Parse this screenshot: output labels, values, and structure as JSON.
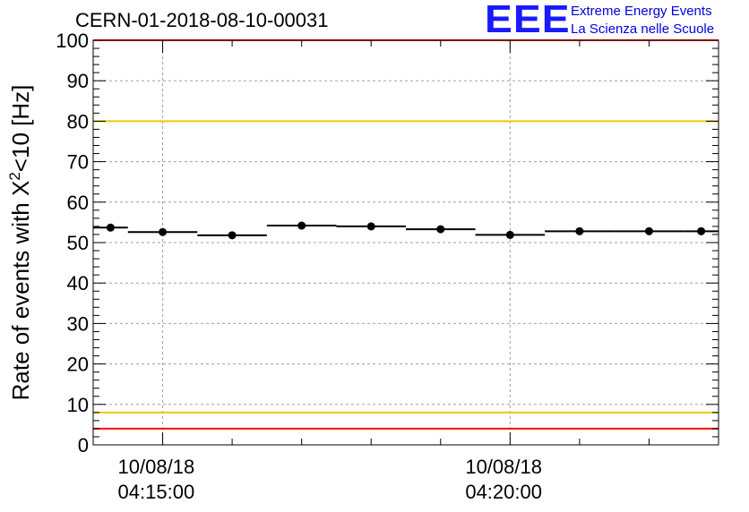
{
  "header": {
    "run_title": "CERN-01-2018-08-10-00031",
    "logo_text": "EEE",
    "logo_line1": "Extreme Energy Events",
    "logo_line2": "La Scienza nelle Scuole"
  },
  "chart_data": {
    "type": "scatter",
    "title": "CERN-01-2018-08-10-00031",
    "ylabel_main": "Rate of events with X",
    "ylabel_sup": "2",
    "ylabel_tail": "<10 [Hz]",
    "xlabel": "",
    "ylim": [
      0,
      100
    ],
    "y_ticks": [
      0,
      10,
      20,
      30,
      40,
      50,
      60,
      70,
      80,
      90,
      100
    ],
    "xlim_seconds_after_04_14_00": [
      0,
      540
    ],
    "x_tick_labels": [
      {
        "date": "10/08/18",
        "time": "04:15:00"
      },
      {
        "date": "10/08/18",
        "time": "04:20:00"
      }
    ],
    "x_tick_seconds_after_04_14_00": [
      60,
      360
    ],
    "grid": true,
    "series": [
      {
        "x_bin_start": [
          "04:14:00",
          "04:14:30",
          "04:15:30",
          "04:16:30",
          "04:17:30",
          "04:18:30",
          "04:19:30",
          "04:20:30",
          "04:21:30",
          "04:22:30"
        ],
        "x_bin_end": [
          "04:14:30",
          "04:15:30",
          "04:16:30",
          "04:17:30",
          "04:18:30",
          "04:19:30",
          "04:20:30",
          "04:21:30",
          "04:22:30",
          "04:23:00"
        ],
        "x_point": [
          "04:14:15",
          "04:15:00",
          "04:16:00",
          "04:17:00",
          "04:18:00",
          "04:19:00",
          "04:20:00",
          "04:21:00",
          "04:22:00",
          "04:22:45"
        ],
        "y": [
          53.7,
          52.6,
          51.8,
          54.2,
          54.0,
          53.3,
          51.9,
          52.8,
          52.8,
          52.8
        ]
      }
    ],
    "reference_lines": [
      {
        "y": 100,
        "color": "#ff0000"
      },
      {
        "y": 80,
        "color": "#f0c800"
      },
      {
        "y": 8,
        "color": "#f0c800"
      },
      {
        "y": 4,
        "color": "#ff0000"
      }
    ]
  }
}
